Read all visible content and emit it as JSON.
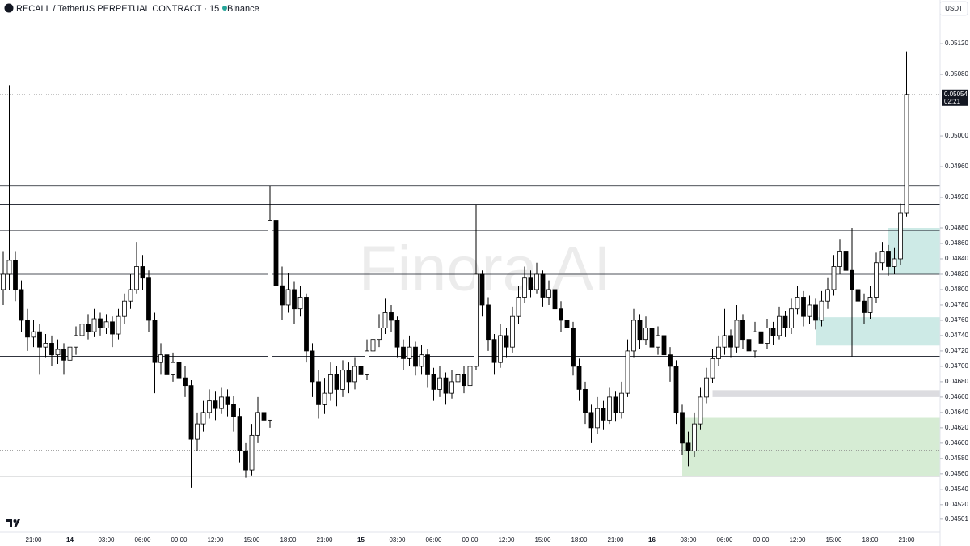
{
  "chart_data": {
    "type": "candlestick",
    "title": "RECALL / TetherUS PERPETUAL CONTRACT · 15 · Binance",
    "currency_button": "USDT",
    "watermark": "Finora AI",
    "up_color": "#ffffff",
    "down_color": "#000000",
    "ylim": [
      0.04484,
      0.05177
    ],
    "yticks": [
      0.04501,
      {
        "value": 0.0452,
        "label": "0.04520"
      },
      {
        "value": 0.0454,
        "label": "0.04540"
      },
      {
        "value": 0.0456,
        "label": "0.04560"
      },
      {
        "value": 0.0458,
        "label": "0.04580"
      },
      {
        "value": 0.046,
        "label": "0.04600"
      },
      {
        "value": 0.0462,
        "label": "0.04620"
      },
      {
        "value": 0.0464,
        "label": "0.04640"
      },
      {
        "value": 0.0466,
        "label": "0.04660"
      },
      {
        "value": 0.0468,
        "label": "0.04680"
      },
      {
        "value": 0.047,
        "label": "0.04700"
      },
      {
        "value": 0.0472,
        "label": "0.04720"
      },
      {
        "value": 0.0474,
        "label": "0.04740"
      },
      {
        "value": 0.0476,
        "label": "0.04760"
      },
      {
        "value": 0.0478,
        "label": "0.04780"
      },
      {
        "value": 0.048,
        "label": "0.04800"
      },
      {
        "value": 0.0482,
        "label": "0.04820"
      },
      {
        "value": 0.0484,
        "label": "0.04840"
      },
      {
        "value": 0.0486,
        "label": "0.04860"
      },
      {
        "value": 0.0488,
        "label": "0.04880"
      },
      {
        "value": 0.0492,
        "label": "0.04920"
      },
      {
        "value": 0.0496,
        "label": "0.04960"
      },
      {
        "value": 0.05,
        "label": "0.05000"
      },
      {
        "value": 0.0508,
        "label": "0.05080"
      },
      {
        "value": 0.0512,
        "label": "0.05120"
      }
    ],
    "levels": [
      0.04935,
      0.04911,
      0.04877,
      0.0482,
      0.04713,
      0.04557
    ],
    "dotted_levels": [
      0.04591
    ],
    "last_price": 0.05054,
    "countdown": "02:21",
    "zones": [
      {
        "start": 146,
        "top": 0.0488,
        "bottom": 0.0482,
        "color": "#cdeae6"
      },
      {
        "start": 134,
        "top": 0.04764,
        "bottom": 0.04727,
        "color": "#cdeae6"
      },
      {
        "start": 117,
        "top": 0.04669,
        "bottom": 0.0466,
        "color": "#dcdce0"
      },
      {
        "start": 112,
        "top": 0.04633,
        "bottom": 0.04557,
        "color": "#d6ecd4"
      }
    ],
    "categories": [
      null,
      null,
      null,
      null,
      null,
      "21:00",
      null,
      null,
      null,
      null,
      null,
      "14",
      null,
      null,
      null,
      null,
      null,
      "03:00",
      null,
      null,
      null,
      null,
      null,
      "06:00",
      null,
      null,
      null,
      null,
      null,
      "09:00",
      null,
      null,
      null,
      null,
      null,
      "12:00",
      null,
      null,
      null,
      null,
      null,
      "15:00",
      null,
      null,
      null,
      null,
      null,
      "18:00",
      null,
      null,
      null,
      null,
      null,
      "21:00",
      null,
      null,
      null,
      null,
      null,
      "15",
      null,
      null,
      null,
      null,
      null,
      "03:00",
      null,
      null,
      null,
      null,
      null,
      "06:00",
      null,
      null,
      null,
      null,
      null,
      "09:00",
      null,
      null,
      null,
      null,
      null,
      "12:00",
      null,
      null,
      null,
      null,
      null,
      "15:00",
      null,
      null,
      null,
      null,
      null,
      "18:00",
      null,
      null,
      null,
      null,
      null,
      "21:00",
      null,
      null,
      null,
      null,
      null,
      "16",
      null,
      null,
      null,
      null,
      null,
      "03:00",
      null,
      null,
      null,
      null,
      null,
      "06:00",
      null,
      null,
      null,
      null,
      null,
      "09:00",
      null,
      null,
      null,
      null,
      null,
      "12:00",
      null,
      null,
      null,
      null,
      null,
      "15:00",
      null,
      null,
      null,
      null,
      null,
      "18:00",
      null,
      null,
      null,
      null,
      null,
      "21:00"
    ],
    "ohlc": [
      [
        0.048,
        0.0485,
        0.0478,
        0.0482
      ],
      [
        0.0482,
        0.05066,
        0.048,
        0.04838
      ],
      [
        0.04838,
        0.0485,
        0.04785,
        0.048
      ],
      [
        0.048,
        0.04812,
        0.04745,
        0.0476
      ],
      [
        0.0476,
        0.04775,
        0.0472,
        0.04738
      ],
      [
        0.04738,
        0.0476,
        0.04725,
        0.04745
      ],
      [
        0.04745,
        0.04755,
        0.0469,
        0.04725
      ],
      [
        0.04725,
        0.04742,
        0.04712,
        0.0473
      ],
      [
        0.0473,
        0.0474,
        0.047,
        0.04715
      ],
      [
        0.04715,
        0.04735,
        0.04703,
        0.04722
      ],
      [
        0.04722,
        0.0473,
        0.0469,
        0.04708
      ],
      [
        0.04708,
        0.04735,
        0.04698,
        0.04725
      ],
      [
        0.04725,
        0.04752,
        0.04715,
        0.0474
      ],
      [
        0.0474,
        0.04775,
        0.04732,
        0.04755
      ],
      [
        0.04755,
        0.04768,
        0.04735,
        0.04745
      ],
      [
        0.04745,
        0.04775,
        0.04738,
        0.04762
      ],
      [
        0.04762,
        0.0477,
        0.0474,
        0.0475
      ],
      [
        0.0475,
        0.04768,
        0.04742,
        0.04758
      ],
      [
        0.04758,
        0.04765,
        0.04725,
        0.04742
      ],
      [
        0.04742,
        0.04775,
        0.04735,
        0.04765
      ],
      [
        0.04765,
        0.04795,
        0.04755,
        0.04785
      ],
      [
        0.04785,
        0.0482,
        0.04775,
        0.048
      ],
      [
        0.048,
        0.04862,
        0.04795,
        0.0483
      ],
      [
        0.0483,
        0.04845,
        0.048,
        0.04815
      ],
      [
        0.04815,
        0.04825,
        0.04745,
        0.0476
      ],
      [
        0.0476,
        0.0477,
        0.04665,
        0.04705
      ],
      [
        0.04705,
        0.0473,
        0.0469,
        0.04715
      ],
      [
        0.04715,
        0.04728,
        0.04678,
        0.0469
      ],
      [
        0.0469,
        0.04718,
        0.0468,
        0.04705
      ],
      [
        0.04705,
        0.04712,
        0.0467,
        0.04685
      ],
      [
        0.04685,
        0.047,
        0.0466,
        0.04675
      ],
      [
        0.04675,
        0.04682,
        0.04542,
        0.04605
      ],
      [
        0.04605,
        0.0464,
        0.0459,
        0.04625
      ],
      [
        0.04625,
        0.04655,
        0.04615,
        0.0464
      ],
      [
        0.0464,
        0.0467,
        0.04632,
        0.04655
      ],
      [
        0.04655,
        0.04668,
        0.0463,
        0.04645
      ],
      [
        0.04645,
        0.04672,
        0.04638,
        0.0466
      ],
      [
        0.0466,
        0.0467,
        0.04635,
        0.0465
      ],
      [
        0.0465,
        0.04662,
        0.04615,
        0.04635
      ],
      [
        0.04635,
        0.04645,
        0.04575,
        0.0459
      ],
      [
        0.0459,
        0.046,
        0.04555,
        0.04565
      ],
      [
        0.04565,
        0.04625,
        0.04558,
        0.0461
      ],
      [
        0.0461,
        0.0466,
        0.046,
        0.0464
      ],
      [
        0.0464,
        0.04655,
        0.0459,
        0.0463
      ],
      [
        0.0463,
        0.04935,
        0.0462,
        0.0489
      ],
      [
        0.0489,
        0.049,
        0.0474,
        0.04805
      ],
      [
        0.04805,
        0.0483,
        0.0476,
        0.0478
      ],
      [
        0.0478,
        0.04822,
        0.0477,
        0.048
      ],
      [
        0.048,
        0.0481,
        0.04755,
        0.04775
      ],
      [
        0.04775,
        0.04805,
        0.04765,
        0.0479
      ],
      [
        0.0479,
        0.04795,
        0.04705,
        0.0472
      ],
      [
        0.0472,
        0.0473,
        0.0466,
        0.0468
      ],
      [
        0.0468,
        0.04695,
        0.04632,
        0.0465
      ],
      [
        0.0465,
        0.04685,
        0.04638,
        0.04665
      ],
      [
        0.04665,
        0.04705,
        0.04655,
        0.0469
      ],
      [
        0.0469,
        0.047,
        0.04648,
        0.0467
      ],
      [
        0.0467,
        0.04708,
        0.0466,
        0.04695
      ],
      [
        0.04695,
        0.04705,
        0.04665,
        0.0468
      ],
      [
        0.0468,
        0.04712,
        0.0467,
        0.047
      ],
      [
        0.047,
        0.0471,
        0.04675,
        0.0469
      ],
      [
        0.0469,
        0.04735,
        0.04682,
        0.0472
      ],
      [
        0.0472,
        0.0475,
        0.0471,
        0.04735
      ],
      [
        0.04735,
        0.04768,
        0.04725,
        0.0475
      ],
      [
        0.0475,
        0.04788,
        0.04742,
        0.0477
      ],
      [
        0.0477,
        0.0478,
        0.04745,
        0.0476
      ],
      [
        0.0476,
        0.04765,
        0.04712,
        0.04725
      ],
      [
        0.04725,
        0.04735,
        0.04695,
        0.0471
      ],
      [
        0.0471,
        0.0474,
        0.047,
        0.04725
      ],
      [
        0.04725,
        0.04732,
        0.04688,
        0.047
      ],
      [
        0.047,
        0.04728,
        0.0469,
        0.04715
      ],
      [
        0.04715,
        0.04722,
        0.04672,
        0.0469
      ],
      [
        0.0469,
        0.04698,
        0.04655,
        0.0467
      ],
      [
        0.0467,
        0.047,
        0.0466,
        0.04685
      ],
      [
        0.04685,
        0.04692,
        0.0465,
        0.04665
      ],
      [
        0.04665,
        0.04695,
        0.04658,
        0.0468
      ],
      [
        0.0468,
        0.04705,
        0.0467,
        0.0469
      ],
      [
        0.0469,
        0.047,
        0.04665,
        0.04675
      ],
      [
        0.04675,
        0.04718,
        0.04668,
        0.047
      ],
      [
        0.047,
        0.04911,
        0.04695,
        0.0482
      ],
      [
        0.0482,
        0.04825,
        0.04765,
        0.0478
      ],
      [
        0.0478,
        0.0479,
        0.0472,
        0.04735
      ],
      [
        0.04735,
        0.04742,
        0.0469,
        0.04705
      ],
      [
        0.04705,
        0.04755,
        0.04698,
        0.0474
      ],
      [
        0.0474,
        0.0475,
        0.04712,
        0.04725
      ],
      [
        0.04725,
        0.04778,
        0.04718,
        0.04765
      ],
      [
        0.04765,
        0.04805,
        0.04755,
        0.0479
      ],
      [
        0.0479,
        0.0483,
        0.04782,
        0.04815
      ],
      [
        0.04815,
        0.04825,
        0.0479,
        0.048
      ],
      [
        0.048,
        0.04835,
        0.04795,
        0.0482
      ],
      [
        0.0482,
        0.04825,
        0.04778,
        0.0479
      ],
      [
        0.0479,
        0.04812,
        0.0478,
        0.048
      ],
      [
        0.048,
        0.04808,
        0.04765,
        0.04775
      ],
      [
        0.04775,
        0.04785,
        0.04745,
        0.0476
      ],
      [
        0.0476,
        0.04775,
        0.04735,
        0.0475
      ],
      [
        0.0475,
        0.04758,
        0.04688,
        0.047
      ],
      [
        0.047,
        0.0471,
        0.04655,
        0.0467
      ],
      [
        0.0467,
        0.0468,
        0.04625,
        0.0464
      ],
      [
        0.0464,
        0.0465,
        0.046,
        0.0462
      ],
      [
        0.0462,
        0.0466,
        0.04612,
        0.04645
      ],
      [
        0.04645,
        0.04655,
        0.04618,
        0.0463
      ],
      [
        0.0463,
        0.04672,
        0.04625,
        0.0466
      ],
      [
        0.0466,
        0.04668,
        0.04628,
        0.0464
      ],
      [
        0.0464,
        0.0468,
        0.04632,
        0.04665
      ],
      [
        0.04665,
        0.04735,
        0.0466,
        0.0472
      ],
      [
        0.0472,
        0.04775,
        0.04712,
        0.0476
      ],
      [
        0.0476,
        0.04768,
        0.04722,
        0.04735
      ],
      [
        0.04735,
        0.04765,
        0.04728,
        0.0475
      ],
      [
        0.0475,
        0.04758,
        0.04712,
        0.04725
      ],
      [
        0.04725,
        0.04752,
        0.04715,
        0.0474
      ],
      [
        0.0474,
        0.04748,
        0.047,
        0.04715
      ],
      [
        0.04715,
        0.04725,
        0.0468,
        0.047
      ],
      [
        0.047,
        0.04708,
        0.04625,
        0.0464
      ],
      [
        0.0464,
        0.0465,
        0.04585,
        0.046
      ],
      [
        0.046,
        0.04615,
        0.0457,
        0.0459
      ],
      [
        0.0459,
        0.0464,
        0.04582,
        0.04625
      ],
      [
        0.04625,
        0.04672,
        0.04618,
        0.0466
      ],
      [
        0.0466,
        0.04698,
        0.04652,
        0.04685
      ],
      [
        0.04685,
        0.04722,
        0.04678,
        0.0471
      ],
      [
        0.0471,
        0.0474,
        0.047,
        0.04725
      ],
      [
        0.04725,
        0.04775,
        0.04715,
        0.0474
      ],
      [
        0.0474,
        0.04748,
        0.04712,
        0.04725
      ],
      [
        0.04725,
        0.0478,
        0.04718,
        0.0476
      ],
      [
        0.0476,
        0.04768,
        0.04722,
        0.04735
      ],
      [
        0.04735,
        0.04742,
        0.04705,
        0.0472
      ],
      [
        0.0472,
        0.04758,
        0.04712,
        0.04745
      ],
      [
        0.04745,
        0.04752,
        0.04718,
        0.0473
      ],
      [
        0.0473,
        0.04762,
        0.04722,
        0.0475
      ],
      [
        0.0475,
        0.04758,
        0.04728,
        0.0474
      ],
      [
        0.0474,
        0.04778,
        0.04735,
        0.04765
      ],
      [
        0.04765,
        0.04772,
        0.04738,
        0.0475
      ],
      [
        0.0475,
        0.04788,
        0.04742,
        0.04775
      ],
      [
        0.04775,
        0.04805,
        0.04768,
        0.0479
      ],
      [
        0.0479,
        0.04798,
        0.04752,
        0.04765
      ],
      [
        0.04765,
        0.04792,
        0.04755,
        0.0478
      ],
      [
        0.0478,
        0.04788,
        0.04748,
        0.0476
      ],
      [
        0.0476,
        0.04798,
        0.04752,
        0.04785
      ],
      [
        0.04785,
        0.04815,
        0.04775,
        0.048
      ],
      [
        0.048,
        0.04845,
        0.04792,
        0.0483
      ],
      [
        0.0483,
        0.04865,
        0.0482,
        0.0485
      ],
      [
        0.0485,
        0.04858,
        0.0481,
        0.04825
      ],
      [
        0.04825,
        0.0488,
        0.04713,
        0.048
      ],
      [
        0.048,
        0.0481,
        0.0477,
        0.04785
      ],
      [
        0.04785,
        0.04795,
        0.04755,
        0.0477
      ],
      [
        0.0477,
        0.04805,
        0.04762,
        0.0479
      ],
      [
        0.0479,
        0.04848,
        0.04782,
        0.04835
      ],
      [
        0.04835,
        0.04862,
        0.04825,
        0.0485
      ],
      [
        0.0485,
        0.04858,
        0.04818,
        0.0483
      ],
      [
        0.0483,
        0.04855,
        0.0482,
        0.0484
      ],
      [
        0.0484,
        0.04912,
        0.04832,
        0.049
      ],
      [
        0.049,
        0.0511,
        0.04895,
        0.05054
      ]
    ]
  }
}
